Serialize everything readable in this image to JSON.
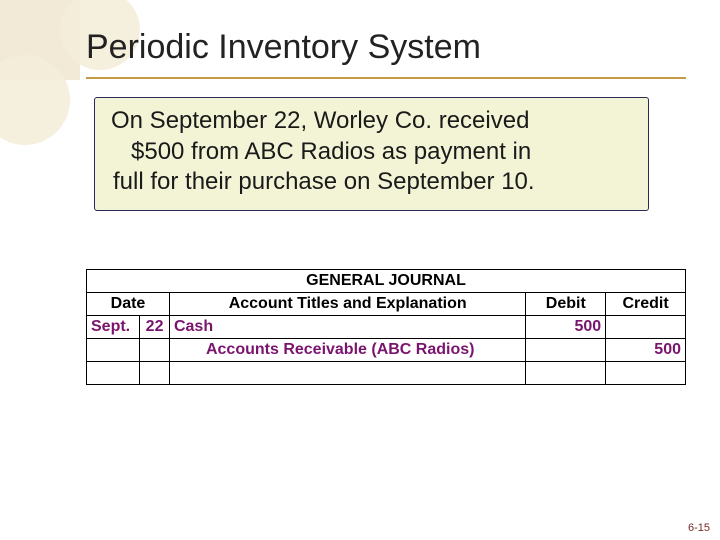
{
  "title": "Periodic Inventory System",
  "callout": {
    "line1": "On September 22, Worley Co. received",
    "line2": "$500 from ABC Radios as payment in",
    "line3": "full for their purchase on September 10."
  },
  "journal": {
    "title": "GENERAL JOURNAL",
    "headers": {
      "date": "Date",
      "acct": "Account Titles and Explanation",
      "debit": "Debit",
      "credit": "Credit"
    },
    "rows": [
      {
        "month": "Sept.",
        "day": "22",
        "account": "Cash",
        "debit": "500",
        "credit": "",
        "indent": false
      },
      {
        "month": "",
        "day": "",
        "account": "Accounts Receivable (ABC Radios)",
        "debit": "",
        "credit": "500",
        "indent": true
      },
      {
        "month": "",
        "day": "",
        "account": "",
        "debit": "",
        "credit": "",
        "indent": false
      }
    ]
  },
  "page_number": "6-15",
  "colors": {
    "accent_underline": "#c59a46",
    "callout_bg": "#f3f4d6",
    "callout_border": "#2a2a5a",
    "header_bg": "#aea4cb",
    "title_row_bg": "#f2f1e2",
    "entry_text": "#7a146e",
    "pagenum": "#7a2a28",
    "deco_bg": "#f2ead7"
  }
}
